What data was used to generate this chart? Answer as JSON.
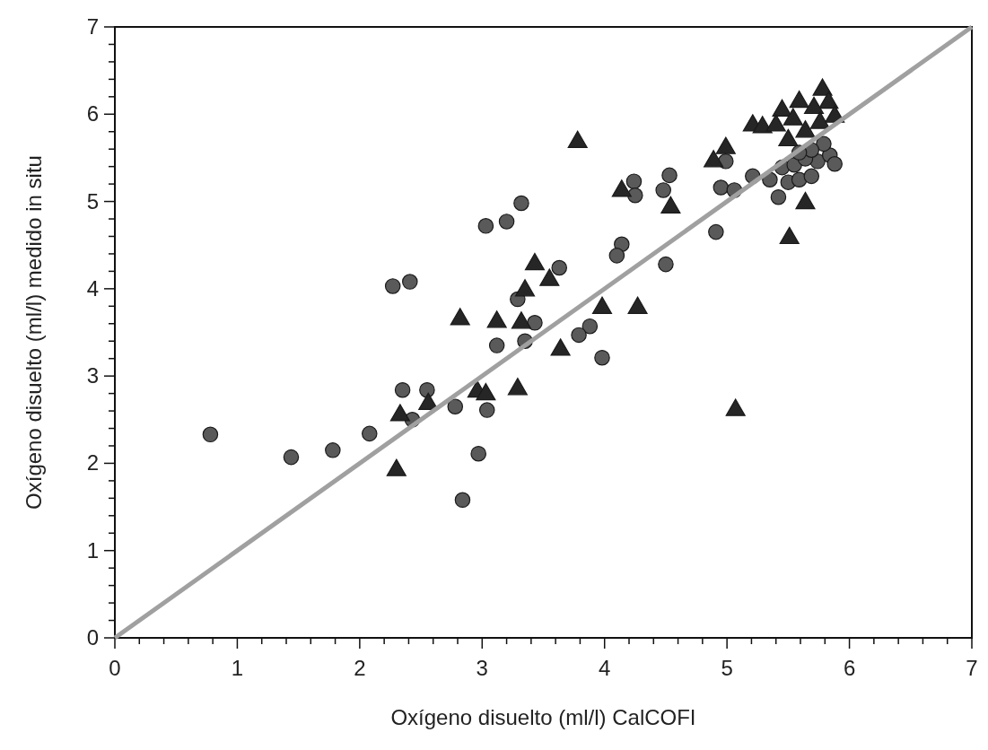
{
  "chart_data": {
    "type": "scatter",
    "xlabel": "Oxígeno disuelto (ml/l) CalCOFI",
    "ylabel": "Oxígeno disuelto (ml/l) medido in situ",
    "xlim": [
      0,
      7
    ],
    "ylim": [
      0,
      7
    ],
    "xticks": [
      0,
      {
        "value": 0.2,
        "label": null
      },
      {
        "value": 0.4,
        "label": null
      },
      {
        "value": 0.6,
        "label": null
      },
      {
        "value": 0.8,
        "label": null
      },
      1,
      {
        "value": 1.2,
        "label": null
      },
      {
        "value": 1.4,
        "label": null
      },
      {
        "value": 1.6,
        "label": null
      },
      {
        "value": 1.8,
        "label": null
      },
      2,
      {
        "value": 2.2,
        "label": null
      },
      {
        "value": 2.4,
        "label": null
      },
      {
        "value": 2.6,
        "label": null
      },
      {
        "value": 2.8,
        "label": null
      },
      3,
      {
        "value": 3.2,
        "label": null
      },
      {
        "value": 3.4,
        "label": null
      },
      {
        "value": 3.6,
        "label": null
      },
      {
        "value": 3.8,
        "label": null
      },
      4,
      {
        "value": 4.2,
        "label": null
      },
      {
        "value": 4.4,
        "label": null
      },
      {
        "value": 4.6,
        "label": null
      },
      {
        "value": 4.8,
        "label": null
      },
      5,
      {
        "value": 5.2,
        "label": null
      },
      {
        "value": 5.4,
        "label": null
      },
      {
        "value": 5.6,
        "label": null
      },
      {
        "value": 5.8,
        "label": null
      },
      6,
      {
        "value": 6.2,
        "label": null
      },
      {
        "value": 6.4,
        "label": null
      },
      {
        "value": 6.6,
        "label": null
      },
      {
        "value": 6.8,
        "label": null
      },
      7
    ],
    "yticks": [
      0,
      {
        "value": 0.2,
        "label": null
      },
      {
        "value": 0.4,
        "label": null
      },
      {
        "value": 0.6,
        "label": null
      },
      {
        "value": 0.8,
        "label": null
      },
      1,
      {
        "value": 1.2,
        "label": null
      },
      {
        "value": 1.4,
        "label": null
      },
      {
        "value": 1.6,
        "label": null
      },
      {
        "value": 1.8,
        "label": null
      },
      2,
      {
        "value": 2.2,
        "label": null
      },
      {
        "value": 2.4,
        "label": null
      },
      {
        "value": 2.6,
        "label": null
      },
      {
        "value": 2.8,
        "label": null
      },
      3,
      {
        "value": 3.2,
        "label": null
      },
      {
        "value": 3.4,
        "label": null
      },
      {
        "value": 3.6,
        "label": null
      },
      {
        "value": 3.8,
        "label": null
      },
      4,
      {
        "value": 4.2,
        "label": null
      },
      {
        "value": 4.4,
        "label": null
      },
      {
        "value": 4.6,
        "label": null
      },
      {
        "value": 4.8,
        "label": null
      },
      5,
      {
        "value": 5.2,
        "label": null
      },
      {
        "value": 5.4,
        "label": null
      },
      {
        "value": 5.6,
        "label": null
      },
      {
        "value": 5.8,
        "label": null
      },
      6,
      {
        "value": 6.2,
        "label": null
      },
      {
        "value": 6.4,
        "label": null
      },
      {
        "value": 6.6,
        "label": null
      },
      {
        "value": 6.8,
        "label": null
      },
      7
    ],
    "grid": false,
    "series": [
      {
        "marker": "circle",
        "color": "#5a5a5a",
        "x": [
          0.78,
          1.44,
          1.78,
          2.08,
          2.27,
          2.41,
          2.35,
          2.55,
          2.43,
          2.78,
          2.97,
          2.84,
          3.04,
          4.24,
          4.25,
          3.32,
          3.2,
          3.03,
          4.14,
          4.1,
          3.63,
          3.29,
          3.43,
          3.12,
          3.35,
          3.88,
          3.79,
          3.98,
          4.53,
          4.48,
          4.91,
          4.5,
          4.99,
          4.95,
          5.06,
          5.35,
          5.42,
          5.5,
          5.59,
          5.69,
          5.74,
          5.84,
          5.88,
          5.45,
          5.55,
          5.64,
          5.79,
          5.69,
          5.59,
          5.21
        ],
        "values": [
          2.33,
          2.07,
          2.15,
          2.34,
          4.03,
          4.08,
          2.84,
          2.84,
          2.5,
          2.65,
          2.11,
          1.58,
          2.61,
          5.23,
          5.07,
          4.98,
          4.77,
          4.72,
          4.51,
          4.38,
          4.24,
          3.88,
          3.61,
          3.35,
          3.4,
          3.57,
          3.47,
          3.21,
          5.3,
          5.13,
          4.65,
          4.28,
          5.46,
          5.16,
          5.13,
          5.25,
          5.05,
          5.22,
          5.25,
          5.29,
          5.46,
          5.53,
          5.43,
          5.39,
          5.42,
          5.49,
          5.66,
          5.59,
          5.56,
          5.29
        ]
      },
      {
        "marker": "triangle",
        "color": "#262626",
        "x": [
          2.82,
          2.33,
          2.56,
          2.3,
          2.96,
          3.03,
          3.78,
          4.14,
          3.43,
          3.55,
          3.35,
          3.12,
          3.32,
          3.98,
          4.27,
          3.64,
          3.29,
          4.54,
          5.51,
          4.99,
          4.89,
          5.21,
          5.29,
          5.64,
          5.78,
          5.59,
          5.45,
          5.83,
          5.4,
          5.54,
          5.71,
          5.88,
          5.5,
          5.64,
          5.76,
          5.07
        ],
        "values": [
          3.65,
          2.55,
          2.68,
          1.92,
          2.82,
          2.79,
          5.68,
          5.12,
          4.28,
          4.1,
          3.98,
          3.62,
          3.61,
          3.78,
          3.78,
          3.3,
          2.85,
          4.93,
          4.58,
          5.61,
          5.46,
          5.87,
          5.85,
          4.98,
          6.28,
          6.14,
          6.04,
          6.13,
          5.87,
          5.94,
          6.07,
          5.97,
          5.7,
          5.8,
          5.9,
          2.61
        ]
      },
      {
        "type": "line",
        "marker": "none",
        "color": "#a0a0a0",
        "x": [
          0,
          7
        ],
        "values": [
          0,
          7
        ]
      }
    ]
  }
}
